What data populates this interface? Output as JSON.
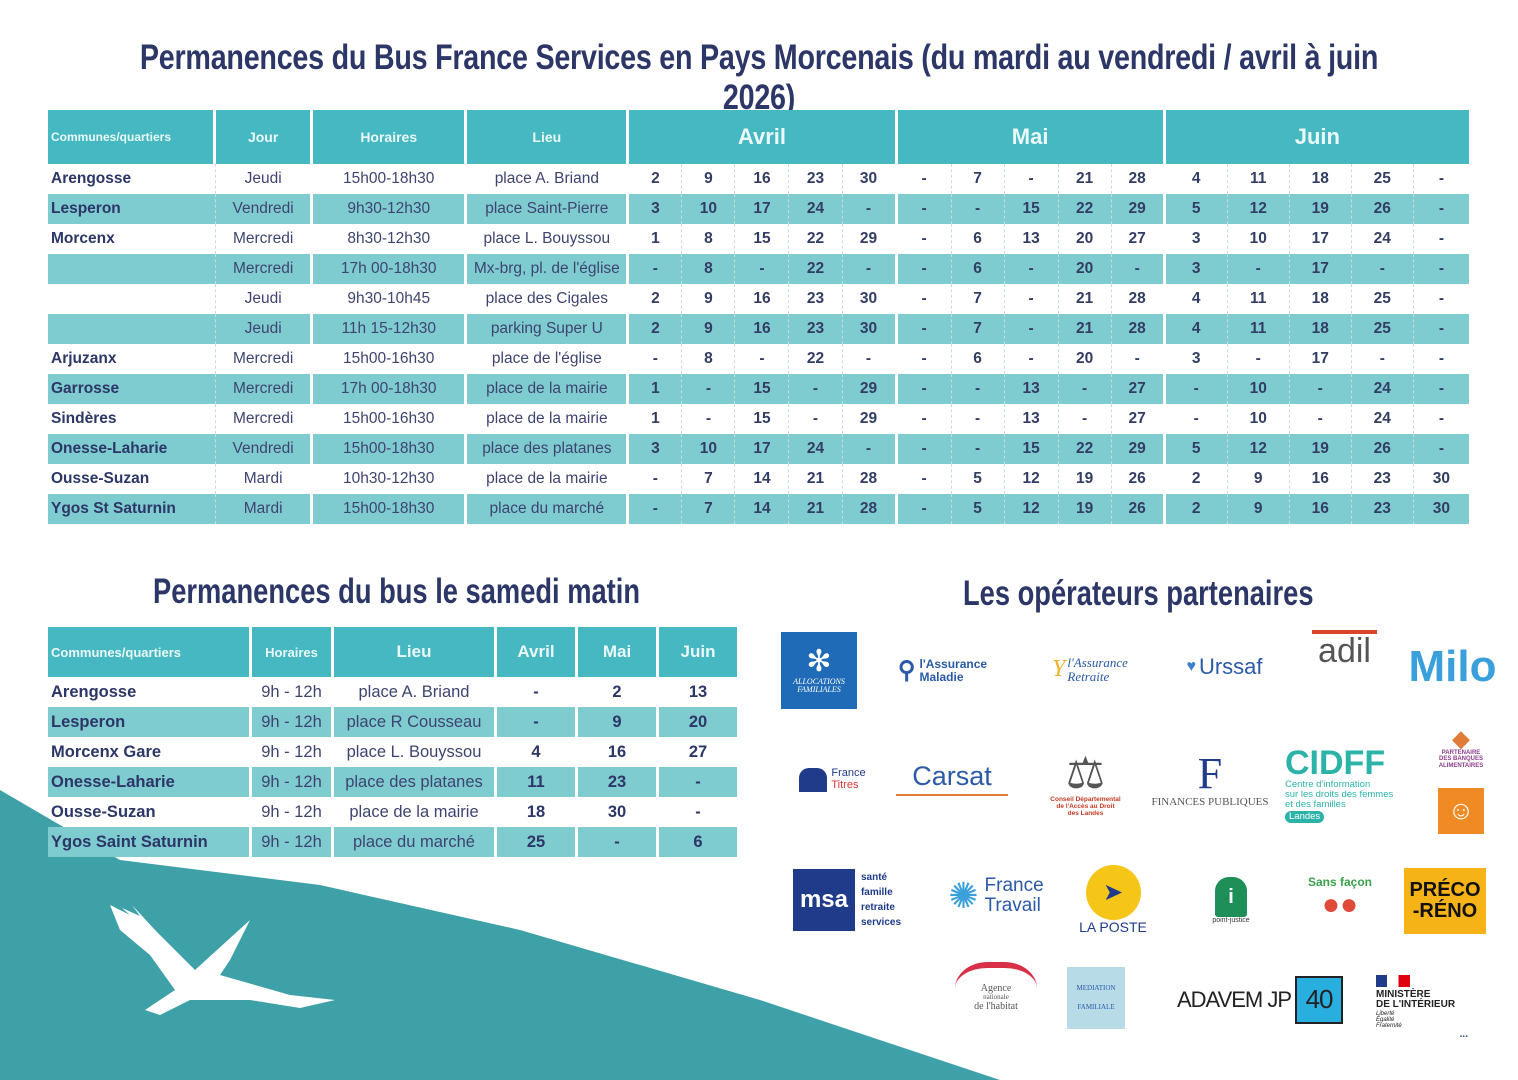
{
  "title": "Permanences du Bus France Services en Pays Morcenais (du mardi au vendredi / avril à juin 2026)",
  "weekday_table": {
    "headers": {
      "commune": "Communes/quartiers",
      "day": "Jour",
      "hours": "Horaires",
      "place": "Lieu",
      "months": [
        "Avril",
        "Mai",
        "Juin"
      ]
    },
    "rows": [
      {
        "commune": "Arengosse",
        "day": "Jeudi",
        "hours": "15h00-18h30",
        "place": "place A. Briand",
        "avril": [
          "2",
          "9",
          "16",
          "23",
          "30"
        ],
        "mai": [
          "-",
          "7",
          "-",
          "21",
          "28"
        ],
        "juin": [
          "4",
          "11",
          "18",
          "25",
          "-"
        ]
      },
      {
        "commune": "Lesperon",
        "day": "Vendredi",
        "hours": "9h30-12h30",
        "place": "place Saint-Pierre",
        "avril": [
          "3",
          "10",
          "17",
          "24",
          "-"
        ],
        "mai": [
          "-",
          "-",
          "15",
          "22",
          "29"
        ],
        "juin": [
          "5",
          "12",
          "19",
          "26",
          "-"
        ]
      },
      {
        "commune": "Morcenx",
        "day": "Mercredi",
        "hours": "8h30-12h30",
        "place": "place L. Bouyssou",
        "avril": [
          "1",
          "8",
          "15",
          "22",
          "29"
        ],
        "mai": [
          "-",
          "6",
          "13",
          "20",
          "27"
        ],
        "juin": [
          "3",
          "10",
          "17",
          "24",
          "-"
        ]
      },
      {
        "commune": "",
        "day": "Mercredi",
        "hours": "17h 00-18h30",
        "place": "Mx-brg, pl. de l'église",
        "avril": [
          "-",
          "8",
          "-",
          "22",
          "-"
        ],
        "mai": [
          "-",
          "6",
          "-",
          "20",
          "-"
        ],
        "juin": [
          "3",
          "-",
          "17",
          "-",
          "-"
        ]
      },
      {
        "commune": "",
        "day": "Jeudi",
        "hours": "9h30-10h45",
        "place": "place  des Cigales",
        "avril": [
          "2",
          "9",
          "16",
          "23",
          "30"
        ],
        "mai": [
          "-",
          "7",
          "-",
          "21",
          "28"
        ],
        "juin": [
          "4",
          "11",
          "18",
          "25",
          "-"
        ]
      },
      {
        "commune": "",
        "day": "Jeudi",
        "hours": "11h 15-12h30",
        "place": "parking Super U",
        "avril": [
          "2",
          "9",
          "16",
          "23",
          "30"
        ],
        "mai": [
          "-",
          "7",
          "-",
          "21",
          "28"
        ],
        "juin": [
          "4",
          "11",
          "18",
          "25",
          "-"
        ]
      },
      {
        "commune": "Arjuzanx",
        "day": "Mercredi",
        "hours": "15h00-16h30",
        "place": "place de l'église",
        "avril": [
          "-",
          "8",
          "-",
          "22",
          "-"
        ],
        "mai": [
          "-",
          "6",
          "-",
          "20",
          "-"
        ],
        "juin": [
          "3",
          "-",
          "17",
          "-",
          "-"
        ]
      },
      {
        "commune": "Garrosse",
        "day": "Mercredi",
        "hours": "17h 00-18h30",
        "place": "place de la mairie",
        "avril": [
          "1",
          "-",
          "15",
          "-",
          "29"
        ],
        "mai": [
          "-",
          "-",
          "13",
          "-",
          "27"
        ],
        "juin": [
          "-",
          "10",
          "-",
          "24",
          "-"
        ]
      },
      {
        "commune": "Sindères",
        "day": "Mercredi",
        "hours": "15h00-16h30",
        "place": "place de la mairie",
        "avril": [
          "1",
          "-",
          "15",
          "-",
          "29"
        ],
        "mai": [
          "-",
          "-",
          "13",
          "-",
          "27"
        ],
        "juin": [
          "-",
          "10",
          "-",
          "24",
          "-"
        ]
      },
      {
        "commune": "Onesse-Laharie",
        "day": "Vendredi",
        "hours": "15h00-18h30",
        "place": "place des platanes",
        "avril": [
          "3",
          "10",
          "17",
          "24",
          "-"
        ],
        "mai": [
          "-",
          "-",
          "15",
          "22",
          "29"
        ],
        "juin": [
          "5",
          "12",
          "19",
          "26",
          "-"
        ]
      },
      {
        "commune": "Ousse-Suzan",
        "day": "Mardi",
        "hours": "10h30-12h30",
        "place": "place de la mairie",
        "avril": [
          "-",
          "7",
          "14",
          "21",
          "28"
        ],
        "mai": [
          "-",
          "5",
          "12",
          "19",
          "26"
        ],
        "juin": [
          "2",
          "9",
          "16",
          "23",
          "30"
        ]
      },
      {
        "commune": "Ygos St Saturnin",
        "day": "Mardi",
        "hours": "15h00-18h30",
        "place": "place du marché",
        "avril": [
          "-",
          "7",
          "14",
          "21",
          "28"
        ],
        "mai": [
          "-",
          "5",
          "12",
          "19",
          "26"
        ],
        "juin": [
          "2",
          "9",
          "16",
          "23",
          "30"
        ]
      }
    ]
  },
  "saturday_title": "Permanences du bus le samedi matin",
  "saturday_table": {
    "headers": {
      "commune": "Communes/quartiers",
      "hours": "Horaires",
      "place": "Lieu",
      "avril": "Avril",
      "mai": "Mai",
      "juin": "Juin"
    },
    "rows": [
      {
        "commune": "Arengosse",
        "hours": "9h - 12h",
        "place": "place A. Briand",
        "avril": "-",
        "mai": "2",
        "juin": "13"
      },
      {
        "commune": "Lesperon",
        "hours": "9h - 12h",
        "place": "place R Cousseau",
        "avril": "-",
        "mai": "9",
        "juin": "20"
      },
      {
        "commune": "Morcenx Gare",
        "hours": "9h - 12h",
        "place": "place L. Bouyssou",
        "avril": "4",
        "mai": "16",
        "juin": "27"
      },
      {
        "commune": "Onesse-Laharie",
        "hours": "9h - 12h",
        "place": "place des platanes",
        "avril": "11",
        "mai": "23",
        "juin": "-"
      },
      {
        "commune": "Ousse-Suzan",
        "hours": "9h - 12h",
        "place": "place de la mairie",
        "avril": "18",
        "mai": "30",
        "juin": "-"
      },
      {
        "commune": "Ygos Saint Saturnin",
        "hours": "9h - 12h",
        "place": "place du marché",
        "avril": "25",
        "mai": "-",
        "juin": "6"
      }
    ]
  },
  "partners_title": "Les opérateurs partenaires",
  "partners": {
    "caf": {
      "l1": "ALLOCATIONS",
      "l2": "FAMILIALES"
    },
    "cpam": {
      "l1": "l'Assurance",
      "l2": "Maladie"
    },
    "retraite": {
      "l1": "l'Assurance",
      "l2": "Retraite"
    },
    "urssaf": "Urssaf",
    "adil": "adil",
    "milo": "Milo",
    "france_titres": {
      "l1": "France",
      "l2": "Titres"
    },
    "carsat": "Carsat",
    "cdad": {
      "l1": "Conseil Départemental",
      "l2": "de l'Accès au Droit",
      "l3": "des Landes"
    },
    "dgfip": "FINANCES PUBLIQUES",
    "cidff": {
      "name": "CIDFF",
      "l1": "Centre d'information",
      "l2": "sur les droits des femmes",
      "l3": "et des familles",
      "badge": "Landes"
    },
    "banque_alim": {
      "l1": "PARTENAIRE",
      "l2": "DES BANQUES",
      "l3": "ALIMENTAIRES"
    },
    "msa": {
      "logo": "msa",
      "l1": "santé",
      "l2": "famille",
      "l3": "retraite",
      "l4": "services"
    },
    "france_travail": {
      "l1": "France",
      "l2": "Travail"
    },
    "la_poste": "LA POSTE",
    "point_justice": "point-justice",
    "sans_facon": "Sans façon",
    "preco_reno": {
      "l1": "PRÉCO",
      "l2": "-RÉNO"
    },
    "anah": {
      "l1": "Agence",
      "l2": "nationale",
      "l3": "de l'habitat"
    },
    "mediation": {
      "l1": "MEDIATION",
      "l2": "FAMILIALE"
    },
    "adavem": {
      "name": "ADAVEM JP",
      "num": "40"
    },
    "ministere": {
      "l1": "MINISTÈRE",
      "l2": "DE L'INTÉRIEUR",
      "l3": "Liberté",
      "l4": "Égalité",
      "l5": "Fraternité",
      "more": "..."
    }
  },
  "colors": {
    "header_teal": "#45b8c2",
    "row_teal": "#7ecbd0",
    "title_navy": "#2c3667",
    "bg_teal": "#3ea1a8"
  }
}
